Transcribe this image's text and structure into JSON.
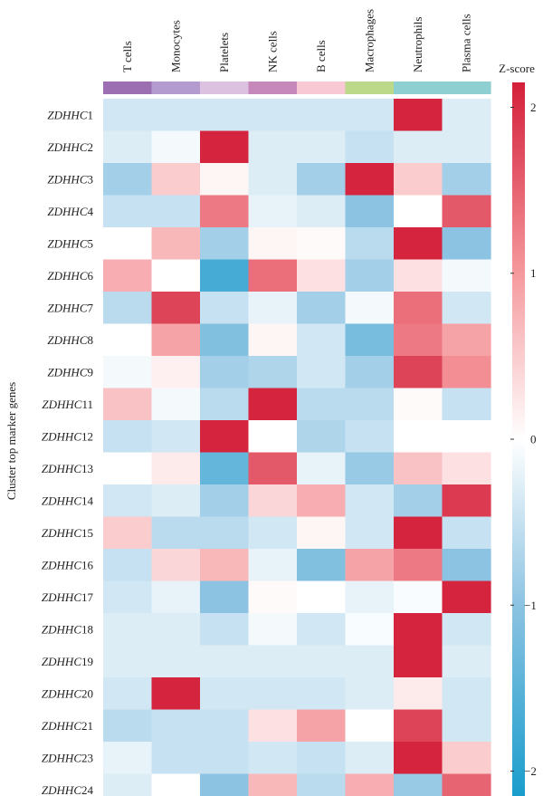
{
  "chart_data": {
    "type": "heatmap",
    "ylabel": "Cluster top marker genes",
    "columns": [
      "T cells",
      "Monocytes",
      "Platelets",
      "NK cells",
      "B cells",
      "Macrophages",
      "Neutrophils",
      "Plasma cells"
    ],
    "column_colors": [
      "#9b6fb1",
      "#b39bd0",
      "#dcc2e0",
      "#c687bb",
      "#f8c8d4",
      "#bcd98a",
      "#8ed0d2",
      "#8ed0d2"
    ],
    "rows": [
      {
        "prefix": "ZDHHC",
        "num": "1"
      },
      {
        "prefix": "ZDHHC",
        "num": "2"
      },
      {
        "prefix": "ZDHHC",
        "num": "3"
      },
      {
        "prefix": "ZDHHC",
        "num": "4"
      },
      {
        "prefix": "ZDHHC",
        "num": "5"
      },
      {
        "prefix": "ZDHHC",
        "num": "6"
      },
      {
        "prefix": "ZDHHC",
        "num": "7"
      },
      {
        "prefix": "ZDHHC",
        "num": "8"
      },
      {
        "prefix": "ZDHHC",
        "num": "9"
      },
      {
        "prefix": "ZDHHC",
        "num": "11"
      },
      {
        "prefix": "ZDHHC",
        "num": "12"
      },
      {
        "prefix": "ZDHHC",
        "num": "13"
      },
      {
        "prefix": "ZDHHC",
        "num": "14"
      },
      {
        "prefix": "ZDHHC",
        "num": "15"
      },
      {
        "prefix": "ZDHHC",
        "num": "16"
      },
      {
        "prefix": "ZDHHC",
        "num": "17"
      },
      {
        "prefix": "ZDHHC",
        "num": "18"
      },
      {
        "prefix": "ZDHHC",
        "num": "19"
      },
      {
        "prefix": "ZDHHC",
        "num": "20"
      },
      {
        "prefix": "ZDHHC",
        "num": "21"
      },
      {
        "prefix": "ZDHHC",
        "num": "23"
      },
      {
        "prefix": "ZDHHC",
        "num": "24"
      }
    ],
    "values": [
      [
        -0.4,
        -0.4,
        -0.4,
        -0.4,
        -0.4,
        -0.4,
        2.1,
        -0.3
      ],
      [
        -0.3,
        -0.1,
        2.1,
        -0.3,
        -0.3,
        -0.5,
        -0.3,
        -0.3
      ],
      [
        -0.8,
        0.5,
        0.1,
        -0.3,
        -0.8,
        2.1,
        0.5,
        -0.8
      ],
      [
        -0.5,
        -0.5,
        1.3,
        -0.2,
        -0.3,
        -1.0,
        0.0,
        1.6
      ],
      [
        0.0,
        0.7,
        -0.8,
        0.1,
        0.05,
        -0.6,
        2.1,
        -1.0
      ],
      [
        0.8,
        0.0,
        -1.7,
        1.4,
        0.3,
        -0.8,
        0.3,
        -0.1
      ],
      [
        -0.6,
        1.8,
        -0.5,
        -0.2,
        -0.8,
        -0.1,
        1.4,
        -0.4
      ],
      [
        0.0,
        0.9,
        -1.1,
        0.1,
        -0.4,
        -1.2,
        1.3,
        0.9
      ],
      [
        -0.1,
        0.15,
        -0.8,
        -0.7,
        -0.4,
        -0.8,
        1.8,
        1.1
      ],
      [
        0.6,
        -0.1,
        -0.6,
        2.1,
        -0.6,
        -0.6,
        0.05,
        -0.5
      ],
      [
        -0.5,
        -0.4,
        2.1,
        0.0,
        -0.7,
        -0.5,
        0.0,
        0.0
      ],
      [
        0.0,
        0.2,
        -1.4,
        1.6,
        -0.2,
        -0.9,
        0.6,
        0.3
      ],
      [
        -0.4,
        -0.3,
        -0.8,
        0.4,
        0.8,
        -0.4,
        -0.8,
        1.9
      ],
      [
        0.5,
        -0.6,
        -0.6,
        -0.4,
        0.1,
        -0.4,
        2.1,
        -0.5
      ],
      [
        -0.5,
        0.4,
        0.7,
        -0.2,
        -1.1,
        0.9,
        1.3,
        -1.0
      ],
      [
        -0.4,
        -0.2,
        -1.0,
        0.05,
        0.0,
        -0.2,
        -0.05,
        2.1
      ],
      [
        -0.3,
        -0.3,
        -0.5,
        -0.1,
        -0.4,
        -0.05,
        2.1,
        -0.4
      ],
      [
        -0.3,
        -0.3,
        -0.3,
        -0.3,
        -0.3,
        -0.3,
        2.1,
        -0.3
      ],
      [
        -0.4,
        2.1,
        -0.4,
        -0.4,
        -0.4,
        -0.3,
        0.2,
        -0.4
      ],
      [
        -0.6,
        -0.5,
        -0.5,
        0.3,
        0.9,
        0.0,
        1.8,
        -0.4
      ],
      [
        -0.2,
        -0.5,
        -0.5,
        -0.4,
        -0.5,
        -0.3,
        2.1,
        0.5
      ],
      [
        -0.3,
        0.0,
        -1.0,
        0.7,
        -0.6,
        0.8,
        -0.9,
        1.5
      ]
    ],
    "colorbar": {
      "title": "Z-score",
      "range": [
        -2.15,
        2.15
      ],
      "ticks": [
        "2",
        "1",
        "0",
        "−1",
        "−2"
      ],
      "tick_values": [
        2,
        1,
        0,
        -1,
        -2
      ],
      "stops": [
        {
          "v": -2.15,
          "c": "#1a9dcc"
        },
        {
          "v": -1.0,
          "c": "#8cc3e2"
        },
        {
          "v": 0.0,
          "c": "#ffffff"
        },
        {
          "v": 1.0,
          "c": "#f5999d"
        },
        {
          "v": 2.15,
          "c": "#d41f3a"
        }
      ]
    }
  }
}
